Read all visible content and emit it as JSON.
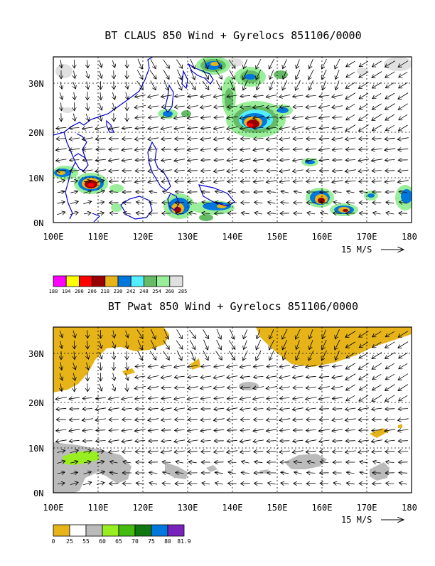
{
  "panel1": {
    "title": "BT CLAUS 850 Wind + Gyrelocs 851106/0000",
    "lat_labels": [
      "30N",
      "20N",
      "10N",
      "0N"
    ],
    "lon_labels": [
      "100E",
      "110E",
      "120E",
      "130E",
      "140E",
      "150E",
      "160E",
      "170E",
      "180"
    ],
    "scale_label": "15 M/S",
    "colorbar": {
      "colors": [
        "#ff00ff",
        "#ffff00",
        "#ff0000",
        "#990000",
        "#e6b418",
        "#0077dd",
        "#55eeff",
        "#66bb66",
        "#99ee99",
        "#e0e0e0"
      ],
      "labels": [
        "188",
        "194",
        "200",
        "206",
        "218",
        "230",
        "242",
        "248",
        "254",
        "260",
        "285"
      ]
    }
  },
  "panel2": {
    "title": "BT Pwat 850 Wind + Gyrelocs 851106/0000",
    "lat_labels": [
      "30N",
      "20N",
      "10N",
      "0N"
    ],
    "lon_labels": [
      "100E",
      "110E",
      "120E",
      "130E",
      "140E",
      "150E",
      "160E",
      "170E",
      "180"
    ],
    "scale_label": "15 M/S",
    "colorbar": {
      "colors": [
        "#e6b418",
        "#ffffff",
        "#bbbbbb",
        "#99ee22",
        "#44bb11",
        "#117711",
        "#0077dd",
        "#7722bb"
      ],
      "labels": [
        "0",
        "25",
        "55",
        "60",
        "65",
        "70",
        "75",
        "80",
        "81.9"
      ]
    }
  },
  "colors": {
    "coast": "#0000cc",
    "grid": "#000000"
  }
}
